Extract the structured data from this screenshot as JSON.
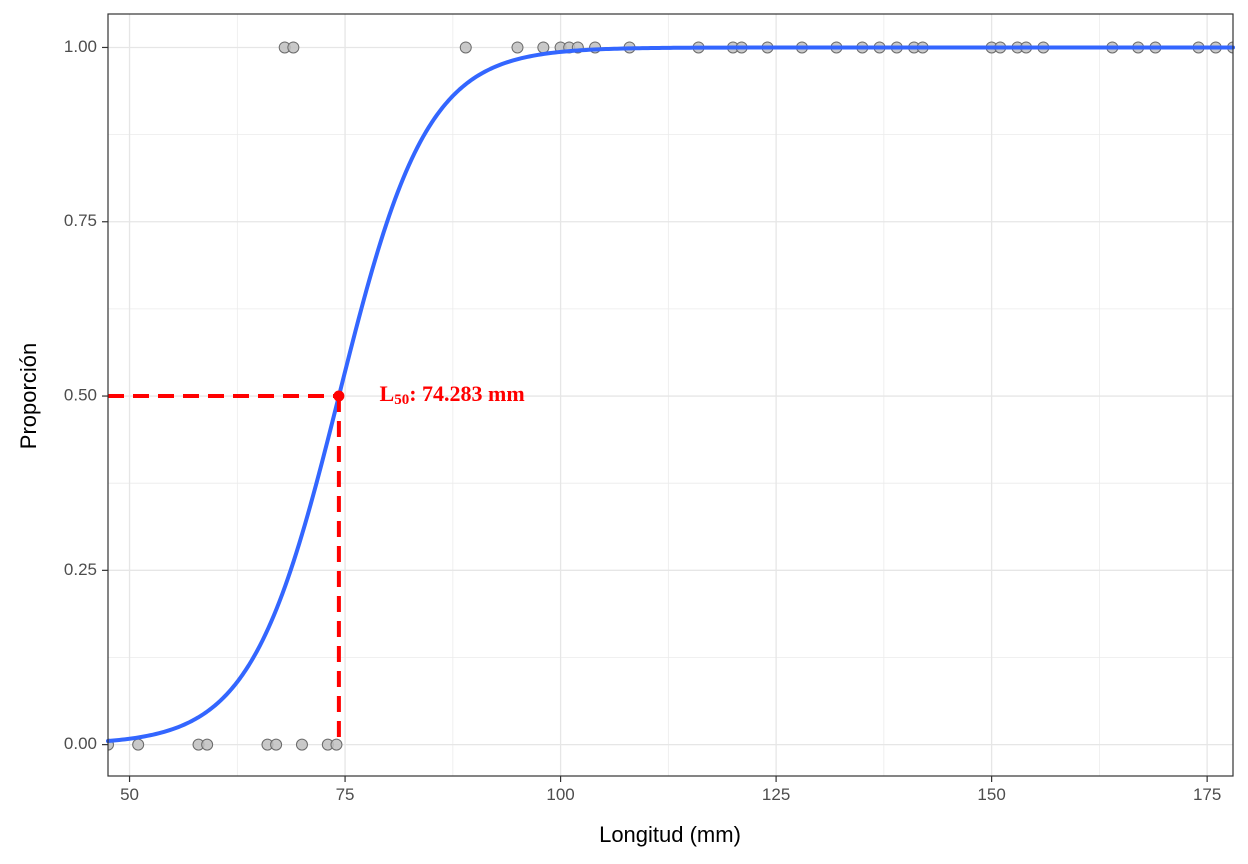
{
  "chart_data": {
    "type": "scatter",
    "xlabel": "Longitud (mm)",
    "ylabel": "Proporción",
    "xlim": [
      47.5,
      178
    ],
    "ylim": [
      -0.045,
      1.048
    ],
    "x_ticks": [
      50,
      75,
      100,
      125,
      150,
      175
    ],
    "x_tick_labels": [
      "50",
      "75",
      "100",
      "125",
      "150",
      "175"
    ],
    "y_ticks": [
      0,
      0.25,
      0.5,
      0.75,
      1
    ],
    "y_tick_labels": [
      "0.00",
      "0.25",
      "0.50",
      "0.75",
      "1.00"
    ],
    "grid": true,
    "logistic_fit": {
      "x50": 74.283,
      "slope": 0.1963,
      "color": "#3366ff"
    },
    "points": [
      {
        "x": 47.5,
        "y": 0
      },
      {
        "x": 51,
        "y": 0
      },
      {
        "x": 58,
        "y": 0
      },
      {
        "x": 59,
        "y": 0
      },
      {
        "x": 66,
        "y": 0
      },
      {
        "x": 67,
        "y": 0
      },
      {
        "x": 70,
        "y": 0
      },
      {
        "x": 73,
        "y": 0
      },
      {
        "x": 74,
        "y": 0
      },
      {
        "x": 68,
        "y": 1
      },
      {
        "x": 69,
        "y": 1
      },
      {
        "x": 89,
        "y": 1
      },
      {
        "x": 95,
        "y": 1
      },
      {
        "x": 98,
        "y": 1
      },
      {
        "x": 100,
        "y": 1
      },
      {
        "x": 101,
        "y": 1
      },
      {
        "x": 102,
        "y": 1
      },
      {
        "x": 104,
        "y": 1
      },
      {
        "x": 108,
        "y": 1
      },
      {
        "x": 116,
        "y": 1
      },
      {
        "x": 120,
        "y": 1
      },
      {
        "x": 121,
        "y": 1
      },
      {
        "x": 124,
        "y": 1
      },
      {
        "x": 128,
        "y": 1
      },
      {
        "x": 132,
        "y": 1
      },
      {
        "x": 135,
        "y": 1
      },
      {
        "x": 137,
        "y": 1
      },
      {
        "x": 139,
        "y": 1
      },
      {
        "x": 141,
        "y": 1
      },
      {
        "x": 142,
        "y": 1
      },
      {
        "x": 150,
        "y": 1
      },
      {
        "x": 151,
        "y": 1
      },
      {
        "x": 153,
        "y": 1
      },
      {
        "x": 154,
        "y": 1
      },
      {
        "x": 156,
        "y": 1
      },
      {
        "x": 164,
        "y": 1
      },
      {
        "x": 167,
        "y": 1
      },
      {
        "x": 169,
        "y": 1
      },
      {
        "x": 174,
        "y": 1
      },
      {
        "x": 176,
        "y": 1
      },
      {
        "x": 178,
        "y": 1
      }
    ],
    "point_color": "#c0c0c0",
    "reference": {
      "x": 74.283,
      "y": 0.5,
      "color": "#ff0000"
    },
    "annotation": {
      "main": "L",
      "sub": "50",
      "text": ":  74.283 mm",
      "x": 79,
      "y": 0.5
    }
  }
}
